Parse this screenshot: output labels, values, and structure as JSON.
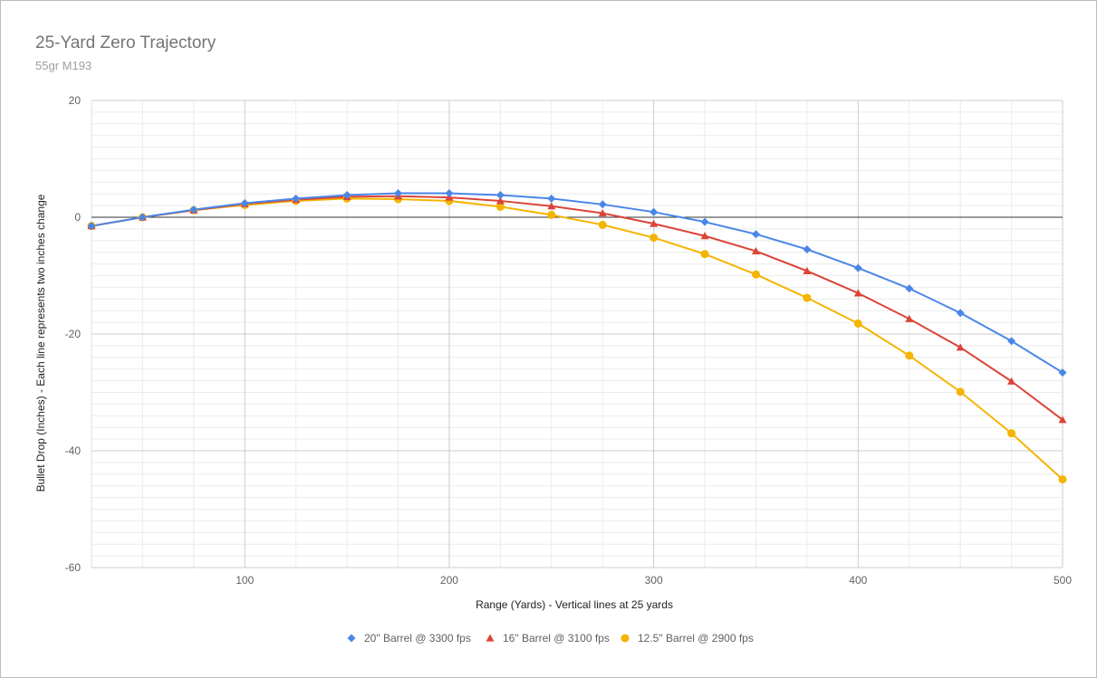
{
  "chart_data": {
    "type": "line",
    "title": "25-Yard Zero Trajectory",
    "subtitle": "55gr M193",
    "xlabel": "Range (Yards) - Vertical lines at 25 yards",
    "ylabel": "Bullet Drop (Inches) - Each line represents two inches change",
    "xlim": [
      25,
      500
    ],
    "ylim": [
      -60,
      20
    ],
    "x_ticks": [
      100,
      200,
      300,
      400,
      500
    ],
    "y_ticks": [
      20,
      0,
      -20,
      -40,
      -60
    ],
    "x_minor_step": 25,
    "y_minor_step": 2,
    "grid": true,
    "legend_position": "bottom",
    "x": [
      25,
      50,
      75,
      100,
      125,
      150,
      175,
      200,
      225,
      250,
      275,
      300,
      325,
      350,
      375,
      400,
      425,
      450,
      475,
      500
    ],
    "series": [
      {
        "name": "20\" Barrel @ 3300 fps",
        "color": "#4a86e8",
        "marker": "diamond",
        "values": [
          -1.5,
          0,
          1.3,
          2.4,
          3.2,
          3.8,
          4.1,
          4.1,
          3.8,
          3.2,
          2.2,
          0.9,
          -0.8,
          -2.9,
          -5.5,
          -8.7,
          -12.2,
          -16.4,
          -21.2,
          -26.6
        ]
      },
      {
        "name": "16\" Barrel @ 3100 fps",
        "color": "#db4437",
        "marker": "triangle",
        "values": [
          -1.5,
          0,
          1.2,
          2.3,
          3.0,
          3.5,
          3.6,
          3.4,
          2.8,
          1.9,
          0.7,
          -1.1,
          -3.2,
          -5.8,
          -9.2,
          -13.0,
          -17.4,
          -22.3,
          -28.1,
          -34.7
        ]
      },
      {
        "name": "12.5\" Barrel @ 2900 fps",
        "color": "#f4b400",
        "marker": "circle",
        "values": [
          -1.5,
          0,
          1.2,
          2.1,
          2.8,
          3.2,
          3.1,
          2.8,
          1.8,
          0.4,
          -1.3,
          -3.5,
          -6.3,
          -9.8,
          -13.8,
          -18.2,
          -23.7,
          -29.9,
          -37.0,
          -44.9
        ]
      }
    ]
  }
}
